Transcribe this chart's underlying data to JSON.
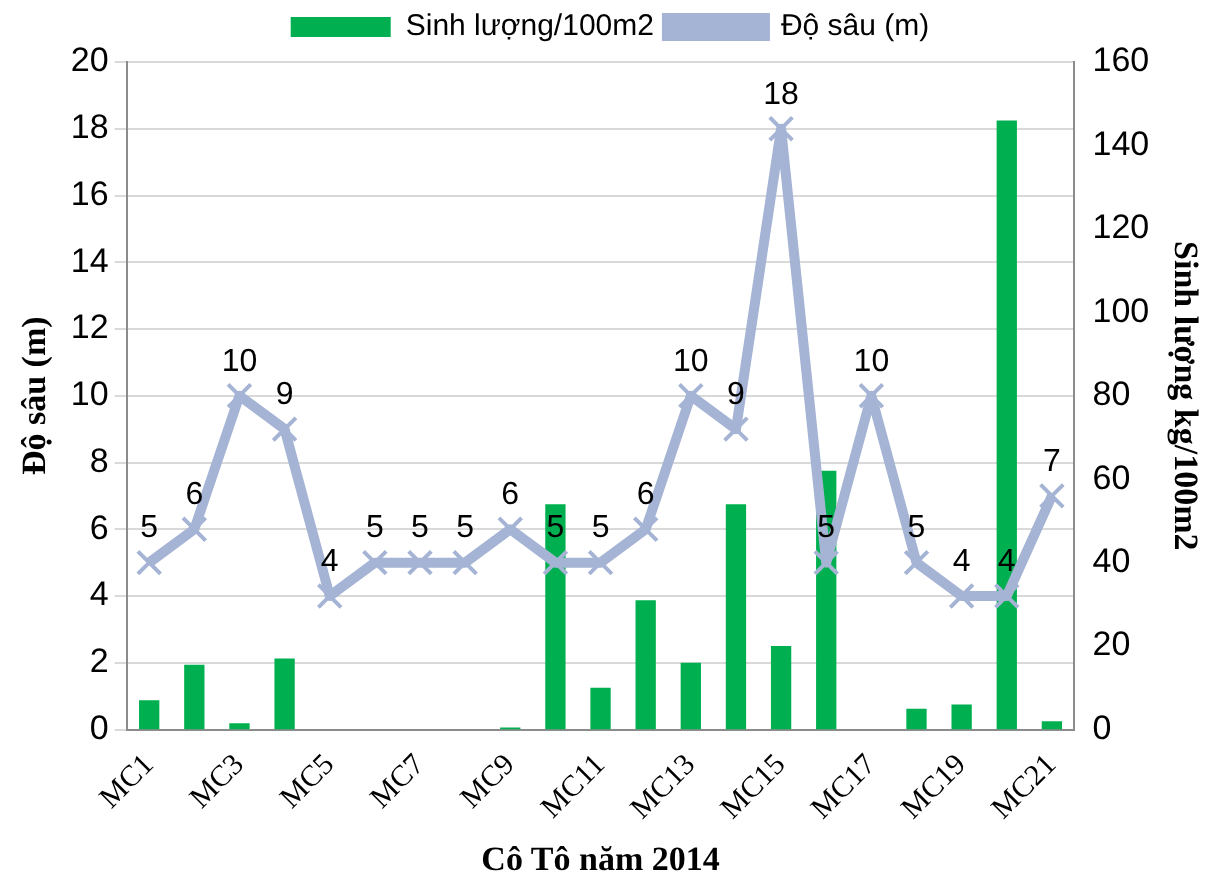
{
  "chart_data": {
    "type": "bar",
    "xlabel": "Cô Tô năm 2014",
    "ylabel": "Độ sâu (m)",
    "y2label": "Sinh lượng kg/100m2",
    "categories": [
      "MC1",
      null,
      "MC3",
      null,
      "MC5",
      null,
      "MC7",
      null,
      "MC9",
      null,
      "MC11",
      null,
      "MC13",
      null,
      "MC15",
      null,
      "MC17",
      null,
      "MC19",
      null,
      "MC21"
    ],
    "series": [
      {
        "name": "Sinh lượng/100m2",
        "axis": "y2",
        "color": "#00b050",
        "values": [
          7,
          15.5,
          1.5,
          17,
          0,
          0,
          0,
          0,
          0.5,
          54,
          10,
          31,
          16,
          54,
          20,
          62,
          0,
          5,
          6,
          146,
          2
        ]
      },
      {
        "name": "Độ sâu (m)",
        "type": "line",
        "axis": "y",
        "color": "#a5b4d4",
        "marker": "cross",
        "data_labels": true,
        "values": [
          5,
          6,
          10,
          9,
          4,
          5,
          5,
          5,
          6,
          5,
          5,
          6,
          10,
          9,
          18,
          5,
          10,
          5,
          4,
          4,
          7
        ]
      }
    ],
    "ylim": [
      0,
      20
    ],
    "yticks": [
      0,
      2,
      4,
      6,
      8,
      10,
      12,
      14,
      16,
      18,
      20
    ],
    "y2lim": [
      0,
      160
    ],
    "y2ticks": [
      0,
      20,
      40,
      60,
      80,
      100,
      120,
      140,
      160
    ],
    "grid": "y",
    "legend": "top"
  }
}
